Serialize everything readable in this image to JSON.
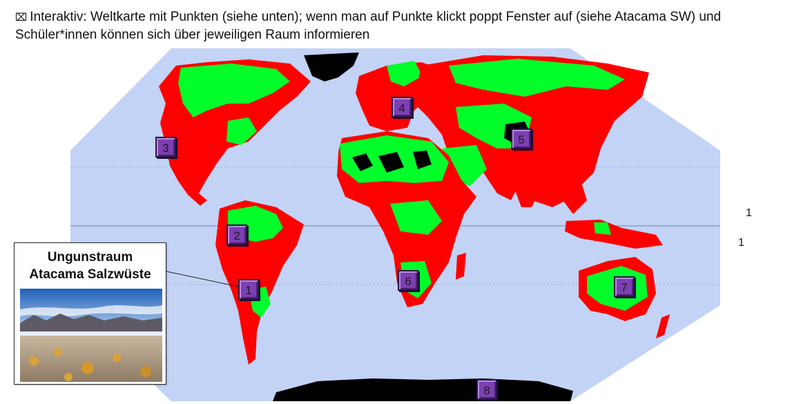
{
  "header": {
    "bullet": "⌧",
    "text": "Interaktiv: Weltkarte mit Punkten (siehe unten); wenn man auf Punkte klickt poppt Fenster auf (siehe Atacama SW) und Schüler*innen können sich über jeweiligen Raum informieren"
  },
  "markers": [
    {
      "label": "1"
    },
    {
      "label": "2"
    },
    {
      "label": "3"
    },
    {
      "label": "4"
    },
    {
      "label": "5"
    },
    {
      "label": "6"
    },
    {
      "label": "7"
    },
    {
      "label": "8"
    }
  ],
  "side_numbers": [
    "1",
    "1"
  ],
  "popup": {
    "title_line1": "Ungunstraum",
    "title_line2": "Atacama Salzwüste",
    "image": "atacama-landscape-photo"
  },
  "colors": {
    "ocean": "#c3d3f6",
    "land_red": "#ff0000",
    "land_green": "#00ff2a",
    "desert_black": "#000000",
    "marker": "#7d3fb3"
  }
}
